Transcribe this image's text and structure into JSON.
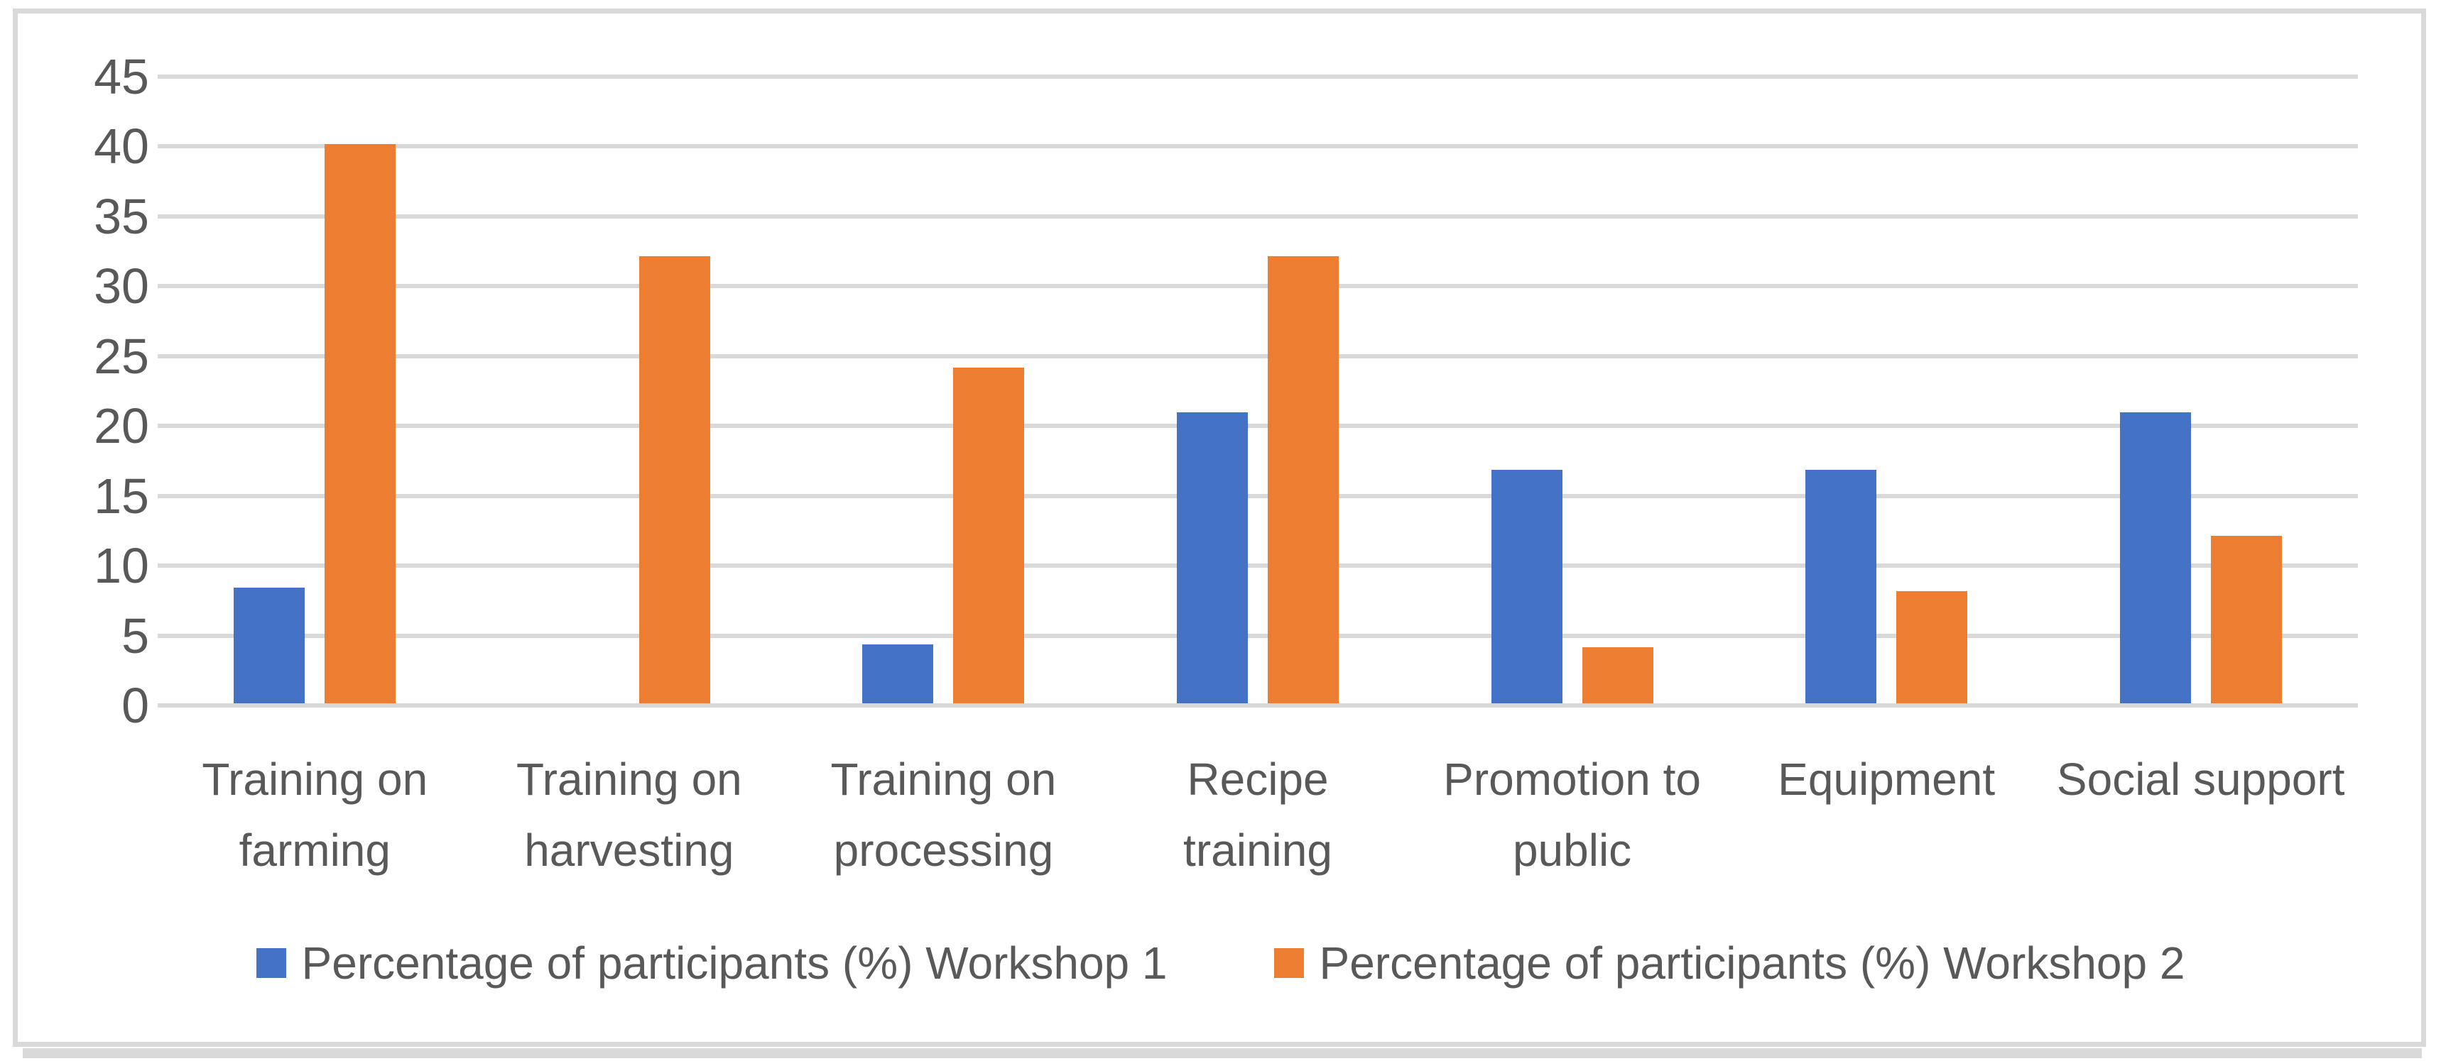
{
  "chart_data": {
    "type": "bar",
    "categories": [
      "Training on\nfarming",
      "Training on\nharvesting",
      "Training on\nprocessing",
      "Recipe\ntraining",
      "Promotion to\npublic",
      "Equipment",
      "Social support"
    ],
    "series": [
      {
        "name": "Percentage of participants (%) Workshop 1",
        "color": "#4472C4",
        "values": [
          8.3,
          0,
          4.2,
          20.8,
          16.7,
          16.7,
          20.8
        ]
      },
      {
        "name": "Percentage of participants (%) Workshop 2",
        "color": "#ED7D31",
        "values": [
          40,
          32,
          24,
          32,
          4,
          8,
          12
        ]
      }
    ],
    "title": "",
    "xlabel": "",
    "ylabel": "",
    "ylim": [
      0,
      45
    ],
    "yticks": [
      0,
      5,
      10,
      15,
      20,
      25,
      30,
      35,
      40,
      45
    ],
    "grid": true,
    "legend_position": "bottom",
    "colors": {
      "background": "#FFFFFF",
      "gridline": "#D9D9D9",
      "frame_border": "#D9D9D9",
      "frame_shadow": "#D9D9D9",
      "axis_text": "#595959"
    }
  }
}
